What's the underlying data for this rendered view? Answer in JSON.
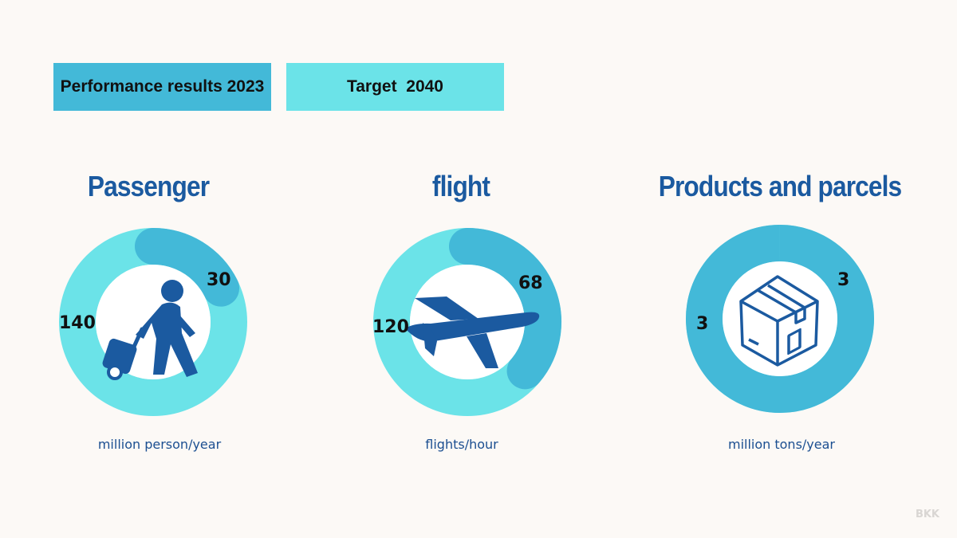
{
  "legend": {
    "actual_label": "Performance results 2023",
    "target_label": "Target  2040"
  },
  "colors": {
    "actual": "#43b9d8",
    "target": "#6be3e8",
    "title": "#1b5aa0",
    "icon": "#1b5aa0",
    "background": "#fcf9f6"
  },
  "chart_data": [
    {
      "type": "pie",
      "title": "Passenger",
      "unit": "million person/year",
      "icon": "traveler-with-luggage-icon",
      "slices": [
        {
          "name": "Performance results 2023",
          "value": 30
        },
        {
          "name": "Target 2040",
          "value": 140
        }
      ]
    },
    {
      "type": "pie",
      "title": "flight",
      "unit": "flights/hour",
      "icon": "airplane-icon",
      "slices": [
        {
          "name": "Performance results 2023",
          "value": 68
        },
        {
          "name": "Target 2040",
          "value": 120
        }
      ]
    },
    {
      "type": "pie",
      "title": "Products and parcels",
      "unit": "million tons/year",
      "icon": "cargo-box-icon",
      "slices": [
        {
          "name": "Performance results 2023",
          "value": 3
        },
        {
          "name": "Target 2040",
          "value": 3
        }
      ]
    }
  ],
  "footer": "BKK"
}
